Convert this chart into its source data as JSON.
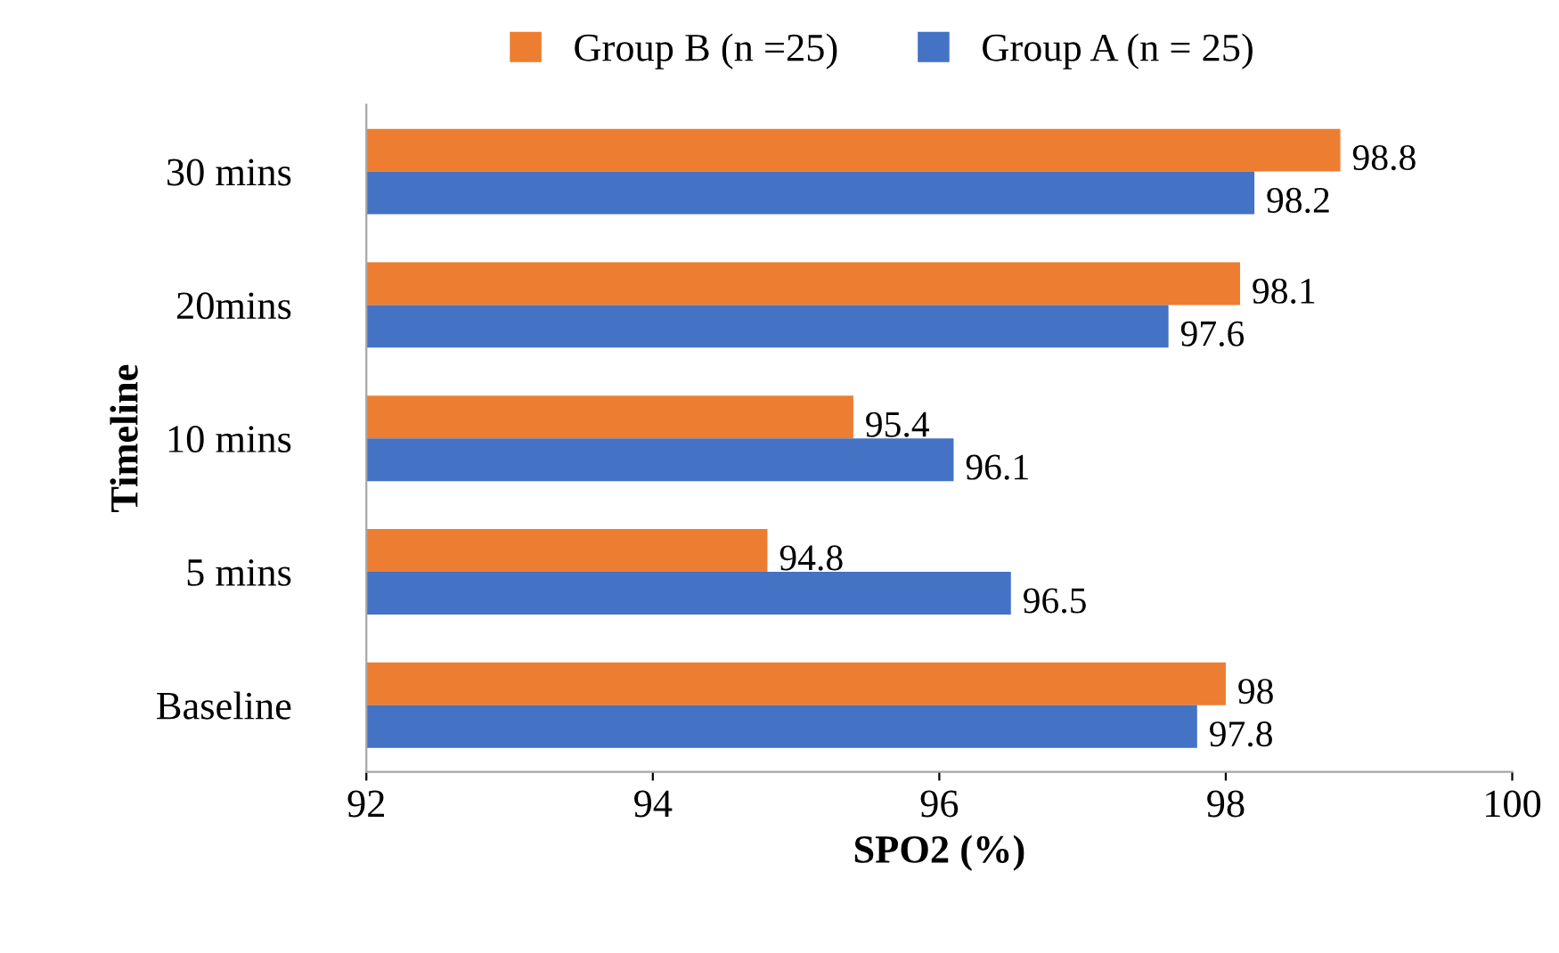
{
  "chart_data": {
    "type": "bar",
    "orientation": "horizontal",
    "xlabel": "SPO2 (%)",
    "ylabel": "Timeline",
    "categories": [
      "30 mins",
      "20mins",
      "10 mins",
      "5 mins",
      "Baseline"
    ],
    "series": [
      {
        "name": "Group B (n =25)",
        "color": "#ed7d31",
        "values": [
          98.8,
          98.1,
          95.4,
          94.8,
          98
        ]
      },
      {
        "name": "Group A (n = 25)",
        "color": "#4472c4",
        "values": [
          98.2,
          97.6,
          96.1,
          96.5,
          97.8
        ]
      }
    ],
    "xlim": [
      92,
      100
    ],
    "xticks": [
      92,
      94,
      96,
      98,
      100
    ],
    "data_labels": true,
    "legend": "top",
    "grid": false
  }
}
